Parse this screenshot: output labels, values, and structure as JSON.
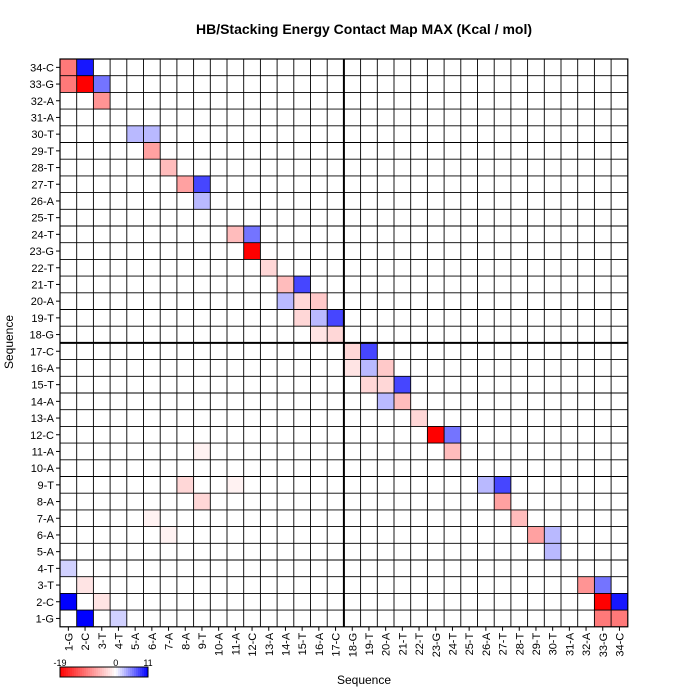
{
  "chart_data": {
    "type": "heatmap",
    "title": "HB/Stacking Energy Contact Map MAX (Kcal / mol)",
    "xlabel": "Sequence",
    "ylabel": "Sequence",
    "labels": [
      "1-G",
      "2-C",
      "3-T",
      "4-T",
      "5-A",
      "6-A",
      "7-A",
      "8-A",
      "9-T",
      "10-A",
      "11-A",
      "12-C",
      "13-A",
      "14-A",
      "15-T",
      "16-A",
      "17-C",
      "18-G",
      "19-T",
      "20-A",
      "21-T",
      "22-T",
      "23-G",
      "24-T",
      "25-T",
      "26-A",
      "27-T",
      "28-T",
      "29-T",
      "30-T",
      "31-A",
      "32-A",
      "33-G",
      "34-C"
    ],
    "x_tick_labels": [
      "1-G",
      "2-C",
      "3-T",
      "4-T",
      "5-A",
      "6-A",
      "7-A",
      "8-A",
      "9-T",
      "10-A",
      "11-A",
      "12-C",
      "13-A",
      "14-A",
      "15-T",
      "16-A",
      "17-C",
      "18-G",
      "19-T",
      "20-A",
      "21-T",
      "22-T",
      "23-G",
      "24-T",
      "25-T",
      "26-A",
      "27-T",
      "28-T",
      "29-T",
      "30-T",
      "31-A",
      "32-A",
      "33-G",
      "34-C"
    ],
    "colorbar": {
      "min": -19,
      "max": 11,
      "mid": 0,
      "tick_labels": [
        "-19",
        "0",
        "11"
      ],
      "low_color": "#ff0000",
      "mid_color": "#ffffff",
      "high_color": "#0000ff"
    },
    "divider_after_index": 17,
    "grid": true,
    "values": [
      [
        0,
        11,
        0,
        2,
        0,
        0,
        0,
        0,
        0,
        0,
        0,
        0,
        0,
        0,
        0,
        0,
        0,
        0,
        0,
        0,
        0,
        0,
        0,
        0,
        0,
        0,
        0,
        0,
        0,
        0,
        0,
        0,
        -10,
        -10
      ],
      [
        11,
        0,
        -2,
        0,
        0,
        0,
        0,
        0,
        0,
        0,
        0,
        0,
        0,
        0,
        0,
        0,
        0,
        0,
        0,
        0,
        0,
        0,
        0,
        0,
        0,
        0,
        0,
        0,
        0,
        0,
        0,
        0,
        -19,
        10
      ],
      [
        0,
        -2,
        0,
        0,
        0,
        0,
        0,
        0,
        0,
        0,
        0,
        0,
        0,
        0,
        0,
        0,
        0,
        0,
        0,
        0,
        0,
        0,
        0,
        0,
        0,
        0,
        0,
        0,
        0,
        0,
        0,
        -8,
        6,
        0
      ],
      [
        2,
        0,
        0,
        0,
        0,
        0,
        0,
        0,
        0,
        0,
        0,
        0,
        0,
        0,
        0,
        0,
        0,
        0,
        0,
        0,
        0,
        0,
        0,
        0,
        0,
        0,
        0,
        0,
        0,
        0,
        0,
        0,
        0,
        0
      ],
      [
        0,
        0,
        0,
        0,
        0,
        0,
        0,
        0,
        0,
        0,
        0,
        0,
        0,
        0,
        0,
        0,
        0,
        0,
        0,
        0,
        0,
        0,
        0,
        0,
        0,
        0,
        0,
        0,
        0,
        3,
        0,
        0,
        0,
        0
      ],
      [
        0,
        0,
        0,
        0,
        0,
        0,
        -1,
        0,
        0,
        0,
        0,
        0,
        0,
        0,
        0,
        0,
        0,
        0,
        0,
        0,
        0,
        0,
        0,
        0,
        0,
        0,
        0,
        0,
        -7,
        3,
        0,
        0,
        0,
        0
      ],
      [
        0,
        0,
        0,
        0,
        0,
        -1,
        0,
        0,
        0,
        0,
        0,
        0,
        0,
        0,
        0,
        0,
        0,
        0,
        0,
        0,
        0,
        0,
        0,
        0,
        0,
        0,
        0,
        -5,
        0,
        0,
        0,
        0,
        0,
        0
      ],
      [
        0,
        0,
        0,
        0,
        0,
        0,
        0,
        0,
        -3,
        0,
        0,
        0,
        0,
        0,
        0,
        0,
        0,
        0,
        0,
        0,
        0,
        0,
        0,
        0,
        0,
        0,
        -7,
        0,
        0,
        0,
        0,
        0,
        0,
        0
      ],
      [
        0,
        0,
        0,
        0,
        0,
        0,
        0,
        -3,
        0,
        0,
        -1,
        0,
        0,
        0,
        0,
        0,
        0,
        0,
        0,
        0,
        0,
        0,
        0,
        0,
        0,
        3,
        8,
        0,
        0,
        0,
        0,
        0,
        0,
        0
      ],
      [
        0,
        0,
        0,
        0,
        0,
        0,
        0,
        0,
        0,
        0,
        0,
        0,
        0,
        0,
        0,
        0,
        0,
        0,
        0,
        0,
        0,
        0,
        0,
        0,
        0,
        0,
        0,
        0,
        0,
        0,
        0,
        0,
        0,
        0
      ],
      [
        0,
        0,
        0,
        0,
        0,
        0,
        0,
        0,
        -1,
        0,
        0,
        0,
        0,
        0,
        0,
        0,
        0,
        0,
        0,
        0,
        0,
        0,
        0,
        -5,
        0,
        0,
        0,
        0,
        0,
        0,
        0,
        0,
        0,
        0
      ],
      [
        0,
        0,
        0,
        0,
        0,
        0,
        0,
        0,
        0,
        0,
        0,
        0,
        0,
        0,
        0,
        0,
        0,
        0,
        0,
        0,
        0,
        0,
        -19,
        6,
        0,
        0,
        0,
        0,
        0,
        0,
        0,
        0,
        0,
        0
      ],
      [
        0,
        0,
        0,
        0,
        0,
        0,
        0,
        0,
        0,
        0,
        0,
        0,
        0,
        0,
        0,
        0,
        0,
        0,
        0,
        0,
        0,
        -3,
        0,
        0,
        0,
        0,
        0,
        0,
        0,
        0,
        0,
        0,
        0,
        0
      ],
      [
        0,
        0,
        0,
        0,
        0,
        0,
        0,
        0,
        0,
        0,
        0,
        0,
        0,
        0,
        0,
        0,
        0,
        0,
        0,
        3,
        -5,
        0,
        0,
        0,
        0,
        0,
        0,
        0,
        0,
        0,
        0,
        0,
        0,
        0
      ],
      [
        0,
        0,
        0,
        0,
        0,
        0,
        0,
        0,
        0,
        0,
        0,
        0,
        0,
        0,
        0,
        0,
        0,
        0,
        -3,
        -3,
        8,
        0,
        0,
        0,
        0,
        0,
        0,
        0,
        0,
        0,
        0,
        0,
        0,
        0
      ],
      [
        0,
        0,
        0,
        0,
        0,
        0,
        0,
        0,
        0,
        0,
        0,
        0,
        0,
        0,
        0,
        0,
        0,
        -2,
        3,
        -4,
        0,
        0,
        0,
        0,
        0,
        0,
        0,
        0,
        0,
        0,
        0,
        0,
        0,
        0
      ],
      [
        0,
        0,
        0,
        0,
        0,
        0,
        0,
        0,
        0,
        0,
        0,
        0,
        0,
        0,
        0,
        0,
        0,
        -3,
        8,
        0,
        0,
        0,
        0,
        0,
        0,
        0,
        0,
        0,
        0,
        0,
        0,
        0,
        0,
        0
      ],
      [
        0,
        0,
        0,
        0,
        0,
        0,
        0,
        0,
        0,
        0,
        0,
        0,
        0,
        0,
        0,
        -2,
        -3,
        0,
        0,
        0,
        0,
        0,
        0,
        0,
        0,
        0,
        0,
        0,
        0,
        0,
        0,
        0,
        0,
        0
      ],
      [
        0,
        0,
        0,
        0,
        0,
        0,
        0,
        0,
        0,
        0,
        0,
        0,
        0,
        0,
        -3,
        3,
        8,
        0,
        0,
        0,
        0,
        0,
        0,
        0,
        0,
        0,
        0,
        0,
        0,
        0,
        0,
        0,
        0,
        0
      ],
      [
        0,
        0,
        0,
        0,
        0,
        0,
        0,
        0,
        0,
        0,
        0,
        0,
        0,
        3,
        -3,
        -4,
        0,
        0,
        0,
        0,
        0,
        0,
        0,
        0,
        0,
        0,
        0,
        0,
        0,
        0,
        0,
        0,
        0,
        0
      ],
      [
        0,
        0,
        0,
        0,
        0,
        0,
        0,
        0,
        0,
        0,
        0,
        0,
        0,
        -5,
        8,
        0,
        0,
        0,
        0,
        0,
        0,
        0,
        0,
        0,
        0,
        0,
        0,
        0,
        0,
        0,
        0,
        0,
        0,
        0
      ],
      [
        0,
        0,
        0,
        0,
        0,
        0,
        0,
        0,
        0,
        0,
        0,
        0,
        -3,
        0,
        0,
        0,
        0,
        0,
        0,
        0,
        0,
        0,
        0,
        0,
        0,
        0,
        0,
        0,
        0,
        0,
        0,
        0,
        0,
        0
      ],
      [
        0,
        0,
        0,
        0,
        0,
        0,
        0,
        0,
        0,
        0,
        0,
        -19,
        0,
        0,
        0,
        0,
        0,
        0,
        0,
        0,
        0,
        0,
        0,
        0,
        0,
        0,
        0,
        0,
        0,
        0,
        0,
        0,
        0,
        0
      ],
      [
        0,
        0,
        0,
        0,
        0,
        0,
        0,
        0,
        0,
        0,
        -5,
        6,
        0,
        0,
        0,
        0,
        0,
        0,
        0,
        0,
        0,
        0,
        0,
        0,
        0,
        0,
        0,
        0,
        0,
        0,
        0,
        0,
        0,
        0
      ],
      [
        0,
        0,
        0,
        0,
        0,
        0,
        0,
        0,
        0,
        0,
        0,
        0,
        0,
        0,
        0,
        0,
        0,
        0,
        0,
        0,
        0,
        0,
        0,
        0,
        0,
        0,
        0,
        0,
        0,
        0,
        0,
        0,
        0,
        0
      ],
      [
        0,
        0,
        0,
        0,
        0,
        0,
        0,
        0,
        3,
        0,
        0,
        0,
        0,
        0,
        0,
        0,
        0,
        0,
        0,
        0,
        0,
        0,
        0,
        0,
        0,
        0,
        0,
        0,
        0,
        0,
        0,
        0,
        0,
        0
      ],
      [
        0,
        0,
        0,
        0,
        0,
        0,
        0,
        -7,
        8,
        0,
        0,
        0,
        0,
        0,
        0,
        0,
        0,
        0,
        0,
        0,
        0,
        0,
        0,
        0,
        0,
        0,
        0,
        0,
        0,
        0,
        0,
        0,
        0,
        0
      ],
      [
        0,
        0,
        0,
        0,
        0,
        0,
        -5,
        0,
        0,
        0,
        0,
        0,
        0,
        0,
        0,
        0,
        0,
        0,
        0,
        0,
        0,
        0,
        0,
        0,
        0,
        0,
        0,
        0,
        0,
        0,
        0,
        0,
        0,
        0
      ],
      [
        0,
        0,
        0,
        0,
        0,
        -7,
        0,
        0,
        0,
        0,
        0,
        0,
        0,
        0,
        0,
        0,
        0,
        0,
        0,
        0,
        0,
        0,
        0,
        0,
        0,
        0,
        0,
        0,
        0,
        0,
        0,
        0,
        0,
        0
      ],
      [
        0,
        0,
        0,
        0,
        3,
        3,
        0,
        0,
        0,
        0,
        0,
        0,
        0,
        0,
        0,
        0,
        0,
        0,
        0,
        0,
        0,
        0,
        0,
        0,
        0,
        0,
        0,
        0,
        0,
        0,
        0,
        0,
        0,
        0
      ],
      [
        0,
        0,
        0,
        0,
        0,
        0,
        0,
        0,
        0,
        0,
        0,
        0,
        0,
        0,
        0,
        0,
        0,
        0,
        0,
        0,
        0,
        0,
        0,
        0,
        0,
        0,
        0,
        0,
        0,
        0,
        0,
        0,
        0,
        0
      ],
      [
        0,
        0,
        -8,
        0,
        0,
        0,
        0,
        0,
        0,
        0,
        0,
        0,
        0,
        0,
        0,
        0,
        0,
        0,
        0,
        0,
        0,
        0,
        0,
        0,
        0,
        0,
        0,
        0,
        0,
        0,
        0,
        0,
        0,
        0
      ],
      [
        -10,
        -19,
        6,
        0,
        0,
        0,
        0,
        0,
        0,
        0,
        0,
        0,
        0,
        0,
        0,
        0,
        0,
        0,
        0,
        0,
        0,
        0,
        0,
        0,
        0,
        0,
        0,
        0,
        0,
        0,
        0,
        0,
        0,
        0
      ],
      [
        -10,
        10,
        0,
        0,
        0,
        0,
        0,
        0,
        0,
        0,
        0,
        0,
        0,
        0,
        0,
        0,
        0,
        0,
        0,
        0,
        0,
        0,
        0,
        0,
        0,
        0,
        0,
        0,
        0,
        0,
        0,
        0,
        0,
        0
      ]
    ]
  }
}
